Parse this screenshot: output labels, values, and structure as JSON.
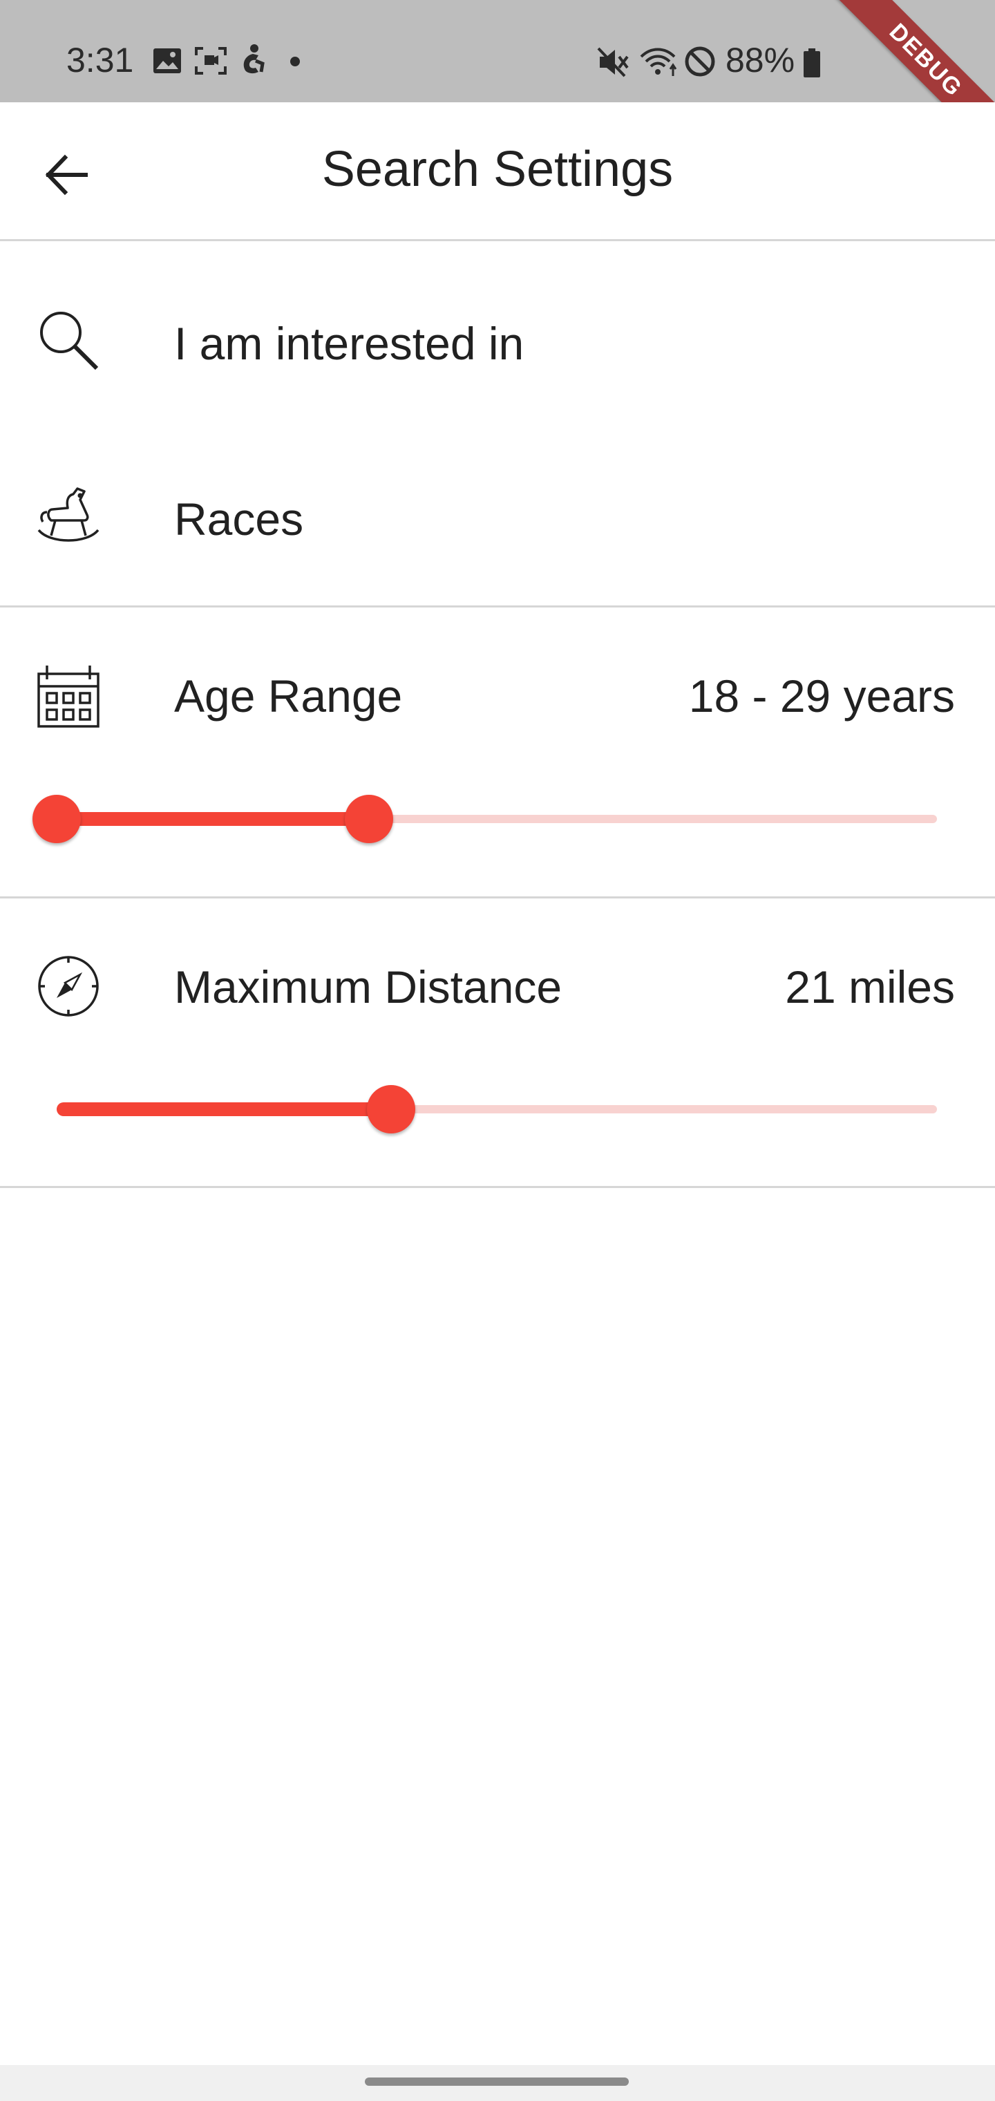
{
  "status_bar": {
    "time": "3:31",
    "battery": "88%",
    "debug_label": "DEBUG",
    "left_icons": [
      "image-icon",
      "screenshot-icon",
      "accessibility-icon",
      "notification-dot-icon"
    ],
    "right_icons": [
      "mute-icon",
      "wifi-icon",
      "do-not-disturb-icon",
      "battery-icon"
    ]
  },
  "app_bar": {
    "title": "Search Settings",
    "back_icon": "arrow-back-icon"
  },
  "settings": {
    "interested_in": {
      "label": "I am interested in",
      "icon": "search-icon"
    },
    "races": {
      "label": "Races",
      "icon": "rocking-horse-icon"
    },
    "age_range": {
      "label": "Age Range",
      "value": "18 - 29 years",
      "icon": "calendar-icon",
      "slider": {
        "min_fraction": 0.0,
        "max_fraction": 0.355
      }
    },
    "max_distance": {
      "label": "Maximum Distance",
      "value": "21 miles",
      "icon": "compass-icon",
      "slider": {
        "value_fraction": 0.38
      }
    }
  },
  "colors": {
    "accent": "#f44336",
    "accent_track_inactive": "#f8d2d0",
    "status_bar_bg": "#bdbdbd",
    "divider": "#d6d6d6",
    "debug_ribbon": "#a33a3a"
  }
}
